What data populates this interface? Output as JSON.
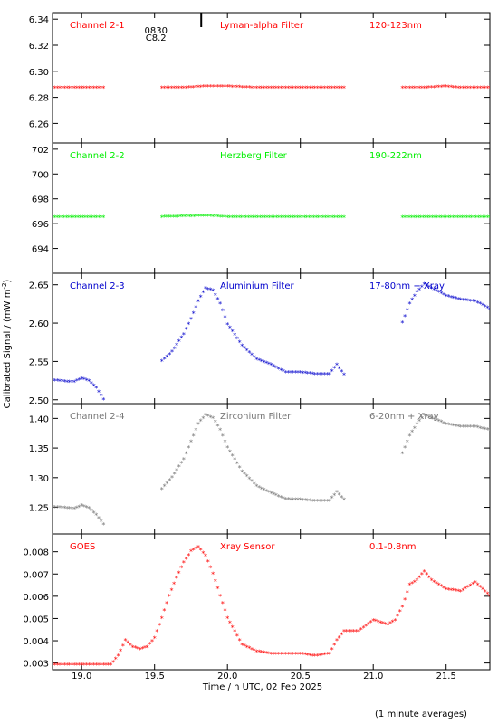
{
  "chart_data": {
    "type": "scatter",
    "xlabel": "Time / h UTC, 02 Feb 2025",
    "ylabel": "Calibrated Signal / (mW m",
    "ylabel_sup": "-2",
    "ylabel_close": ")",
    "footnote": "(1 minute averages)",
    "event_marker": {
      "x": 19.82,
      "lines": [
        "0830",
        "C8.2"
      ]
    },
    "xlim": [
      18.8,
      21.8
    ],
    "xticks": [
      "19.0",
      "19.5",
      "20.0",
      "20.5",
      "21.0",
      "21.5"
    ],
    "panels": [
      {
        "channel": "Channel 2-1",
        "filter": "Lyman-alpha Filter",
        "band": "120-123nm",
        "color": "#ff0000",
        "ylim": [
          6.245,
          6.345
        ],
        "yticks": [
          "6.26",
          "6.28",
          "6.30",
          "6.32",
          "6.34"
        ],
        "segments": [
          {
            "x": [
              18.8,
              18.9,
              19.0,
              19.1,
              19.15
            ],
            "y": [
              6.287,
              6.287,
              6.287,
              6.287,
              6.287
            ]
          },
          {
            "x": [
              19.55,
              19.7,
              19.85,
              20.0,
              20.2,
              20.4,
              20.6,
              20.8
            ],
            "y": [
              6.287,
              6.287,
              6.288,
              6.288,
              6.287,
              6.287,
              6.287,
              6.287
            ]
          },
          {
            "x": [
              21.2,
              21.35,
              21.5,
              21.6,
              21.8
            ],
            "y": [
              6.287,
              6.287,
              6.288,
              6.287,
              6.287
            ]
          }
        ]
      },
      {
        "channel": "Channel 2-2",
        "filter": "Herzberg Filter",
        "band": "190-222nm",
        "color": "#00ee00",
        "ylim": [
          692,
          702.5
        ],
        "yticks": [
          "694",
          "696",
          "698",
          "700",
          "702"
        ],
        "segments": [
          {
            "x": [
              18.8,
              19.15
            ],
            "y": [
              696.5,
              696.5
            ]
          },
          {
            "x": [
              19.55,
              19.85,
              20.0,
              20.4,
              20.8
            ],
            "y": [
              696.5,
              696.6,
              696.5,
              696.5,
              696.5
            ]
          },
          {
            "x": [
              21.2,
              21.5,
              21.8
            ],
            "y": [
              696.5,
              696.5,
              696.5
            ]
          }
        ]
      },
      {
        "channel": "Channel 2-3",
        "filter": "Aluminium Filter",
        "band": "17-80nm + Xray",
        "color": "#0000cc",
        "ylim": [
          2.495,
          2.665
        ],
        "yticks": [
          "2.50",
          "2.55",
          "2.60",
          "2.65"
        ],
        "segments": [
          {
            "x": [
              18.8,
              18.9,
              18.95,
              19.0,
              19.05,
              19.1,
              19.15
            ],
            "y": [
              2.525,
              2.523,
              2.523,
              2.527,
              2.524,
              2.515,
              2.5
            ]
          },
          {
            "x": [
              19.55,
              19.62,
              19.7,
              19.75,
              19.8,
              19.85,
              19.9,
              19.95,
              20.0,
              20.1,
              20.2,
              20.3,
              20.4,
              20.5,
              20.6,
              20.7,
              20.75,
              20.8
            ],
            "y": [
              2.55,
              2.562,
              2.585,
              2.605,
              2.628,
              2.645,
              2.642,
              2.625,
              2.598,
              2.57,
              2.552,
              2.545,
              2.535,
              2.535,
              2.533,
              2.533,
              2.545,
              2.532
            ]
          },
          {
            "x": [
              21.2,
              21.25,
              21.3,
              21.35,
              21.4,
              21.5,
              21.6,
              21.7,
              21.8
            ],
            "y": [
              2.6,
              2.625,
              2.64,
              2.65,
              2.645,
              2.635,
              2.63,
              2.628,
              2.618
            ]
          }
        ]
      },
      {
        "channel": "Channel 2-4",
        "filter": "Zirconium Filter",
        "band": "6-20nm + Xray",
        "color": "#777777",
        "ylim": [
          1.205,
          1.425
        ],
        "yticks": [
          "1.25",
          "1.30",
          "1.35",
          "1.40"
        ],
        "segments": [
          {
            "x": [
              18.8,
              18.9,
              18.95,
              19.0,
              19.05,
              19.1,
              19.15
            ],
            "y": [
              1.25,
              1.248,
              1.247,
              1.252,
              1.248,
              1.236,
              1.22
            ]
          },
          {
            "x": [
              19.55,
              19.62,
              19.7,
              19.75,
              19.8,
              19.85,
              19.9,
              19.95,
              20.0,
              20.1,
              20.2,
              20.3,
              20.4,
              20.5,
              20.6,
              20.7,
              20.75,
              20.8
            ],
            "y": [
              1.28,
              1.3,
              1.33,
              1.36,
              1.39,
              1.405,
              1.4,
              1.38,
              1.35,
              1.31,
              1.285,
              1.273,
              1.263,
              1.262,
              1.26,
              1.26,
              1.275,
              1.262
            ]
          },
          {
            "x": [
              21.2,
              21.25,
              21.3,
              21.35,
              21.4,
              21.5,
              21.6,
              21.7,
              21.8
            ],
            "y": [
              1.34,
              1.37,
              1.39,
              1.405,
              1.4,
              1.39,
              1.385,
              1.385,
              1.38
            ]
          }
        ]
      },
      {
        "channel": "GOES",
        "filter": "Xray Sensor",
        "band": "0.1-0.8nm",
        "color": "#ff0000",
        "ylim": [
          0.0027,
          0.0088
        ],
        "yticks": [
          "0.003",
          "0.004",
          "0.005",
          "0.006",
          "0.007",
          "0.008"
        ],
        "segments": [
          {
            "x": [
              18.8,
              18.9,
              19.0,
              19.1,
              19.2,
              19.25,
              19.3,
              19.35,
              19.4,
              19.45,
              19.5,
              19.55,
              19.6,
              19.65,
              19.7,
              19.75,
              19.8,
              19.85,
              19.9,
              19.95,
              20.0,
              20.1,
              20.2,
              20.3,
              20.4,
              20.5,
              20.6,
              20.7,
              20.75,
              20.8,
              20.9,
              21.0,
              21.1,
              21.15,
              21.2,
              21.25,
              21.3,
              21.35,
              21.4,
              21.5,
              21.6,
              21.7,
              21.8
            ],
            "y": [
              0.0029,
              0.0029,
              0.0029,
              0.0029,
              0.0029,
              0.0033,
              0.004,
              0.0037,
              0.0036,
              0.0037,
              0.0041,
              0.005,
              0.006,
              0.0068,
              0.0075,
              0.008,
              0.0082,
              0.0078,
              0.007,
              0.006,
              0.005,
              0.0038,
              0.0035,
              0.0034,
              0.0034,
              0.0034,
              0.0033,
              0.0034,
              0.004,
              0.0044,
              0.0044,
              0.0049,
              0.0047,
              0.0049,
              0.0055,
              0.0065,
              0.0067,
              0.0071,
              0.0067,
              0.0063,
              0.0062,
              0.0066,
              0.006
            ]
          }
        ]
      }
    ]
  }
}
